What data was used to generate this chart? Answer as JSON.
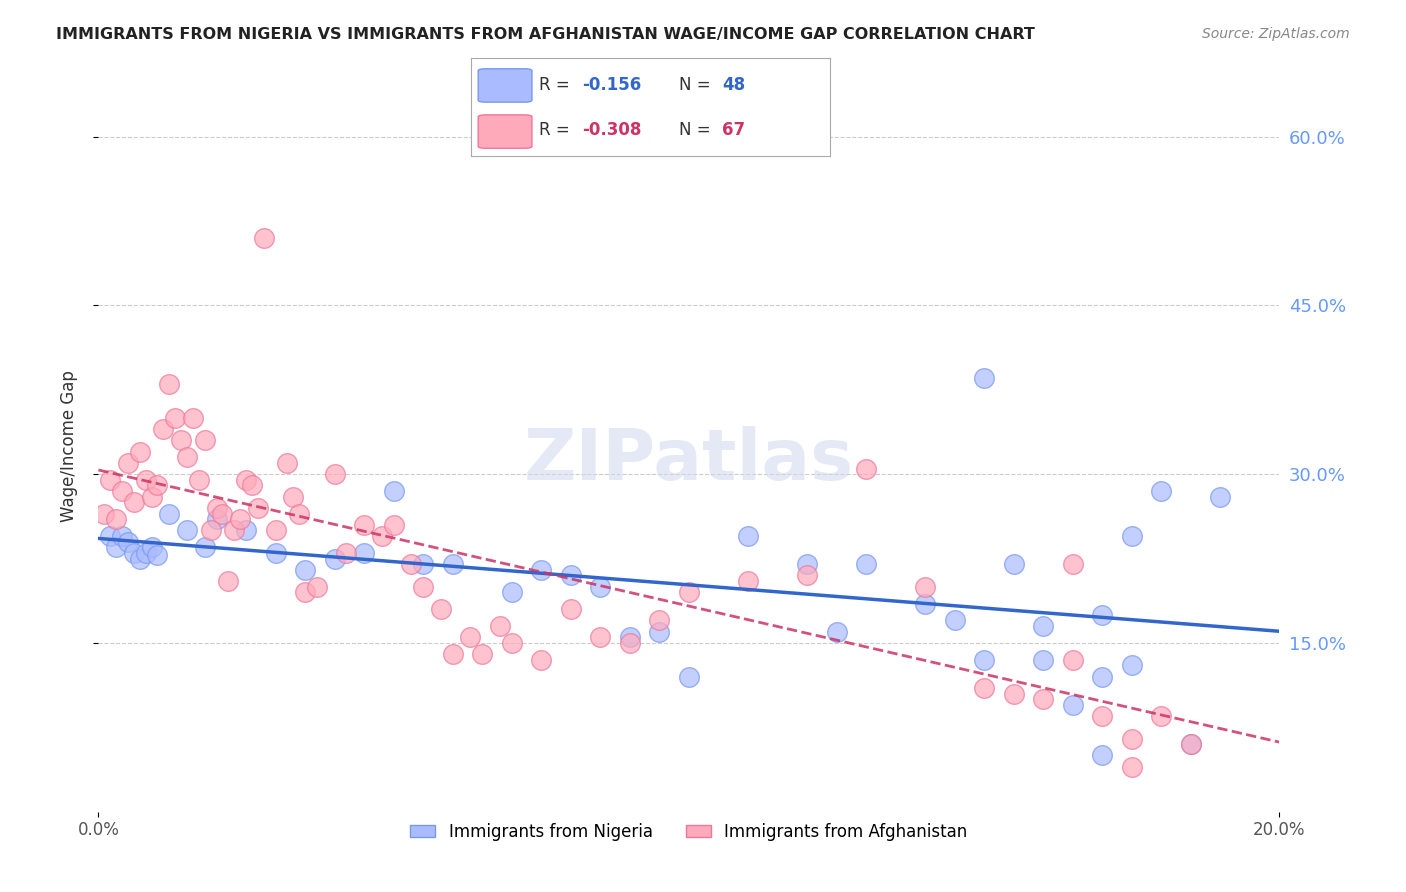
{
  "title": "IMMIGRANTS FROM NIGERIA VS IMMIGRANTS FROM AFGHANISTAN WAGE/INCOME GAP CORRELATION CHART",
  "source": "Source: ZipAtlas.com",
  "ylabel": "Wage/Income Gap",
  "xmin": 0.0,
  "xmax": 0.2,
  "ymin": 0.0,
  "ymax": 0.65,
  "yticks": [
    0.15,
    0.3,
    0.45,
    0.6
  ],
  "ytick_labels": [
    "15.0%",
    "30.0%",
    "45.0%",
    "60.0%"
  ],
  "right_ytick_color": "#6699ff",
  "nigeria_color": "#aabbff",
  "nigeria_edge_color": "#7799ee",
  "afghanistan_color": "#ffaabb",
  "afghanistan_edge_color": "#ee7799",
  "nigeria_R": "-0.156",
  "nigeria_N": "48",
  "afghanistan_R": "-0.308",
  "afghanistan_N": "67",
  "legend_R_color_nigeria": "#3366cc",
  "legend_R_color_afghanistan": "#cc3366",
  "watermark": "ZIPatlas",
  "nigeria_line_color": "#3366cc",
  "afghanistan_line_color": "#cc3366",
  "nigeria_points": [
    [
      0.002,
      0.245
    ],
    [
      0.003,
      0.235
    ],
    [
      0.004,
      0.245
    ],
    [
      0.005,
      0.24
    ],
    [
      0.006,
      0.23
    ],
    [
      0.007,
      0.225
    ],
    [
      0.008,
      0.23
    ],
    [
      0.009,
      0.235
    ],
    [
      0.01,
      0.228
    ],
    [
      0.012,
      0.265
    ],
    [
      0.015,
      0.25
    ],
    [
      0.018,
      0.235
    ],
    [
      0.02,
      0.26
    ],
    [
      0.025,
      0.25
    ],
    [
      0.03,
      0.23
    ],
    [
      0.035,
      0.215
    ],
    [
      0.04,
      0.225
    ],
    [
      0.045,
      0.23
    ],
    [
      0.05,
      0.285
    ],
    [
      0.055,
      0.22
    ],
    [
      0.06,
      0.22
    ],
    [
      0.07,
      0.195
    ],
    [
      0.075,
      0.215
    ],
    [
      0.08,
      0.21
    ],
    [
      0.085,
      0.2
    ],
    [
      0.09,
      0.155
    ],
    [
      0.095,
      0.16
    ],
    [
      0.1,
      0.12
    ],
    [
      0.11,
      0.245
    ],
    [
      0.12,
      0.22
    ],
    [
      0.125,
      0.16
    ],
    [
      0.13,
      0.22
    ],
    [
      0.14,
      0.185
    ],
    [
      0.145,
      0.17
    ],
    [
      0.15,
      0.385
    ],
    [
      0.155,
      0.22
    ],
    [
      0.16,
      0.135
    ],
    [
      0.165,
      0.095
    ],
    [
      0.17,
      0.12
    ],
    [
      0.175,
      0.13
    ],
    [
      0.15,
      0.135
    ],
    [
      0.16,
      0.165
    ],
    [
      0.17,
      0.175
    ],
    [
      0.18,
      0.285
    ],
    [
      0.17,
      0.05
    ],
    [
      0.175,
      0.245
    ],
    [
      0.185,
      0.06
    ],
    [
      0.19,
      0.28
    ]
  ],
  "afghanistan_points": [
    [
      0.001,
      0.265
    ],
    [
      0.002,
      0.295
    ],
    [
      0.003,
      0.26
    ],
    [
      0.004,
      0.285
    ],
    [
      0.005,
      0.31
    ],
    [
      0.006,
      0.275
    ],
    [
      0.007,
      0.32
    ],
    [
      0.008,
      0.295
    ],
    [
      0.009,
      0.28
    ],
    [
      0.01,
      0.29
    ],
    [
      0.011,
      0.34
    ],
    [
      0.012,
      0.38
    ],
    [
      0.013,
      0.35
    ],
    [
      0.014,
      0.33
    ],
    [
      0.015,
      0.315
    ],
    [
      0.016,
      0.35
    ],
    [
      0.017,
      0.295
    ],
    [
      0.018,
      0.33
    ],
    [
      0.019,
      0.25
    ],
    [
      0.02,
      0.27
    ],
    [
      0.021,
      0.265
    ],
    [
      0.022,
      0.205
    ],
    [
      0.023,
      0.25
    ],
    [
      0.024,
      0.26
    ],
    [
      0.025,
      0.295
    ],
    [
      0.026,
      0.29
    ],
    [
      0.027,
      0.27
    ],
    [
      0.028,
      0.51
    ],
    [
      0.03,
      0.25
    ],
    [
      0.032,
      0.31
    ],
    [
      0.033,
      0.28
    ],
    [
      0.034,
      0.265
    ],
    [
      0.035,
      0.195
    ],
    [
      0.037,
      0.2
    ],
    [
      0.04,
      0.3
    ],
    [
      0.042,
      0.23
    ],
    [
      0.045,
      0.255
    ],
    [
      0.048,
      0.245
    ],
    [
      0.05,
      0.255
    ],
    [
      0.053,
      0.22
    ],
    [
      0.055,
      0.2
    ],
    [
      0.058,
      0.18
    ],
    [
      0.06,
      0.14
    ],
    [
      0.063,
      0.155
    ],
    [
      0.065,
      0.14
    ],
    [
      0.068,
      0.165
    ],
    [
      0.07,
      0.15
    ],
    [
      0.075,
      0.135
    ],
    [
      0.08,
      0.18
    ],
    [
      0.085,
      0.155
    ],
    [
      0.09,
      0.15
    ],
    [
      0.095,
      0.17
    ],
    [
      0.1,
      0.195
    ],
    [
      0.11,
      0.205
    ],
    [
      0.12,
      0.21
    ],
    [
      0.13,
      0.305
    ],
    [
      0.14,
      0.2
    ],
    [
      0.15,
      0.11
    ],
    [
      0.155,
      0.105
    ],
    [
      0.16,
      0.1
    ],
    [
      0.165,
      0.135
    ],
    [
      0.17,
      0.085
    ],
    [
      0.175,
      0.04
    ],
    [
      0.165,
      0.22
    ],
    [
      0.175,
      0.065
    ],
    [
      0.18,
      0.085
    ],
    [
      0.185,
      0.06
    ]
  ]
}
